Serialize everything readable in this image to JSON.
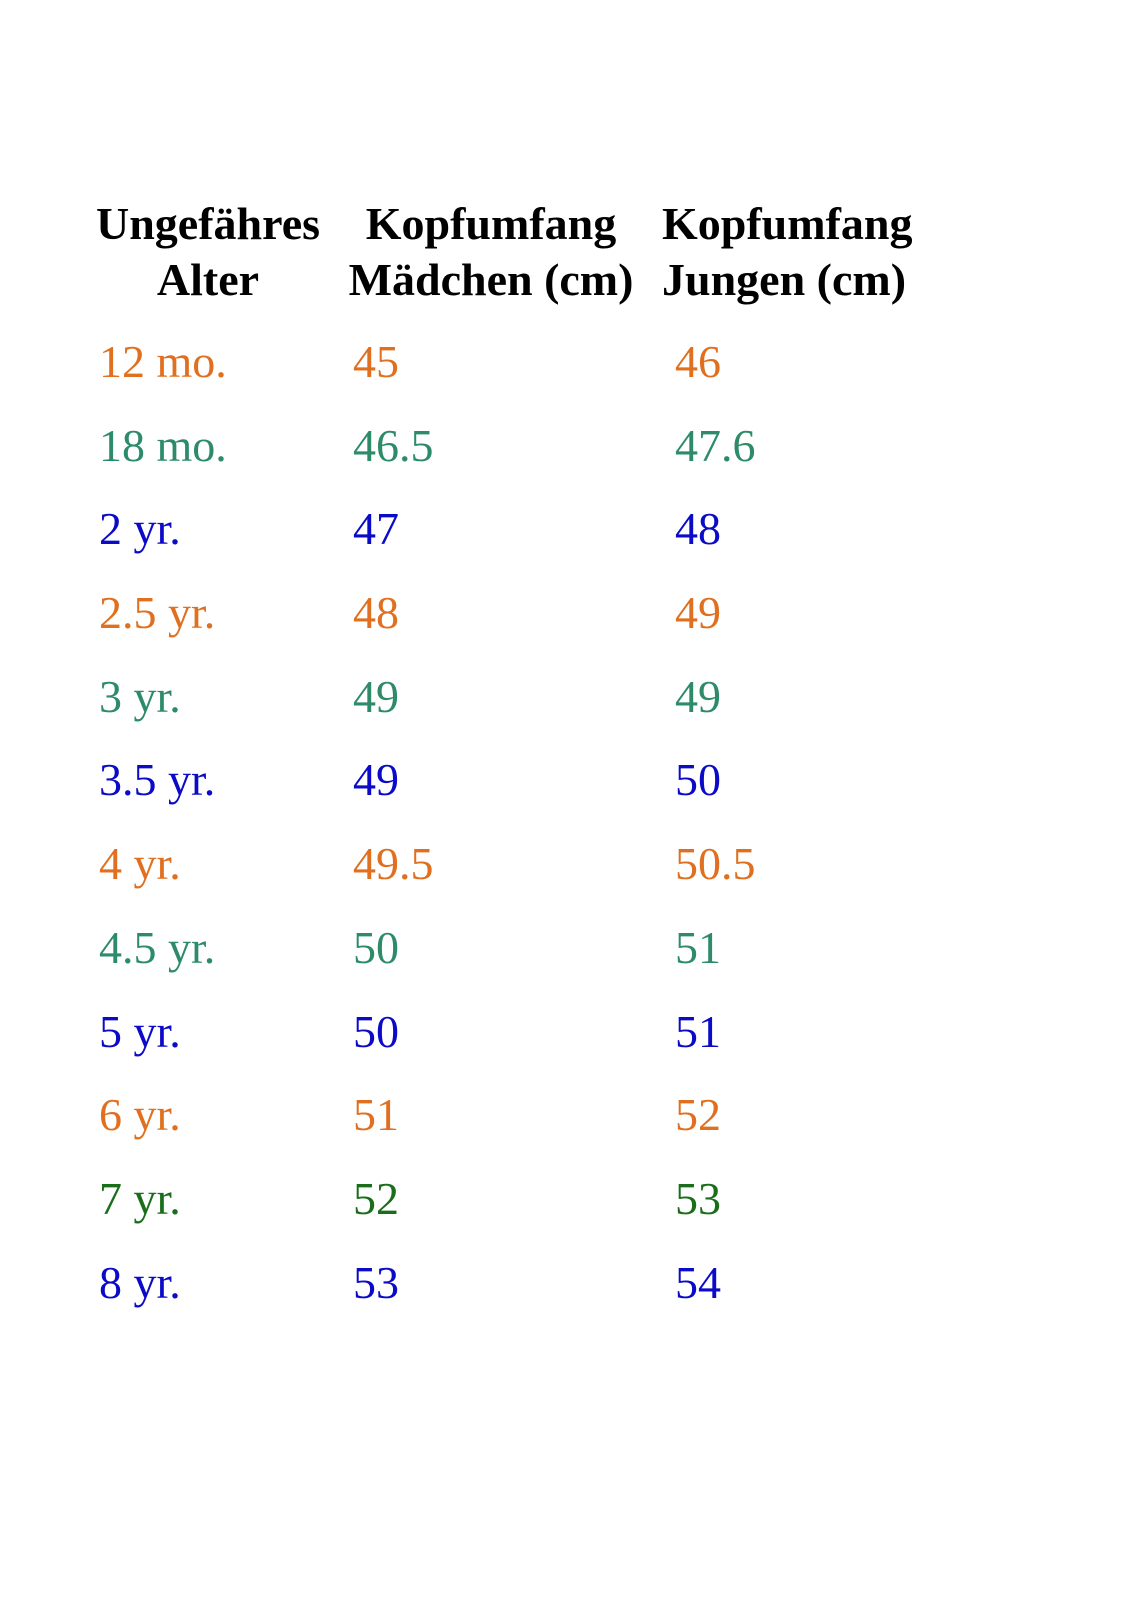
{
  "table": {
    "headers": {
      "age": [
        "Ungefähres",
        "Alter"
      ],
      "girls": [
        "Kopfumfang",
        "Mädchen (cm)"
      ],
      "boys": [
        "Kopfumfang",
        "Jungen (cm)"
      ]
    },
    "colors": {
      "orange": "#e07020",
      "teal": "#2e8b6a",
      "blue": "#0a0ac8",
      "green": "#1a6e1a"
    },
    "rows": [
      {
        "age": "12 mo.",
        "girls": "45",
        "boys": "46",
        "color": "#e07020"
      },
      {
        "age": "18 mo.",
        "girls": "46.5",
        "boys": "47.6",
        "color": "#2e8b6a"
      },
      {
        "age": "2 yr.",
        "girls": "47",
        "boys": "48",
        "color": "#0a0ac8"
      },
      {
        "age": "2.5 yr.",
        "girls": "48",
        "boys": "49",
        "color": "#e07020"
      },
      {
        "age": "3 yr.",
        "girls": "49",
        "boys": "49",
        "color": "#2e8b6a"
      },
      {
        "age": "3.5 yr.",
        "girls": "49",
        "boys": "50",
        "color": "#0a0ac8"
      },
      {
        "age": "4 yr.",
        "girls": "49.5",
        "boys": "50.5",
        "color": "#e07020"
      },
      {
        "age": "4.5 yr.",
        "girls": "50",
        "boys": "51",
        "color": "#2e8b6a"
      },
      {
        "age": "5 yr.",
        "girls": "50",
        "boys": "51",
        "color": "#0a0ac8"
      },
      {
        "age": "6 yr.",
        "girls": "51",
        "boys": "52",
        "color": "#e07020"
      },
      {
        "age": "7 yr.",
        "girls": "52",
        "boys": "53",
        "color": "#1a6e1a"
      },
      {
        "age": "8 yr.",
        "girls": "53",
        "boys": "54",
        "color": "#0a0ac8"
      }
    ]
  }
}
